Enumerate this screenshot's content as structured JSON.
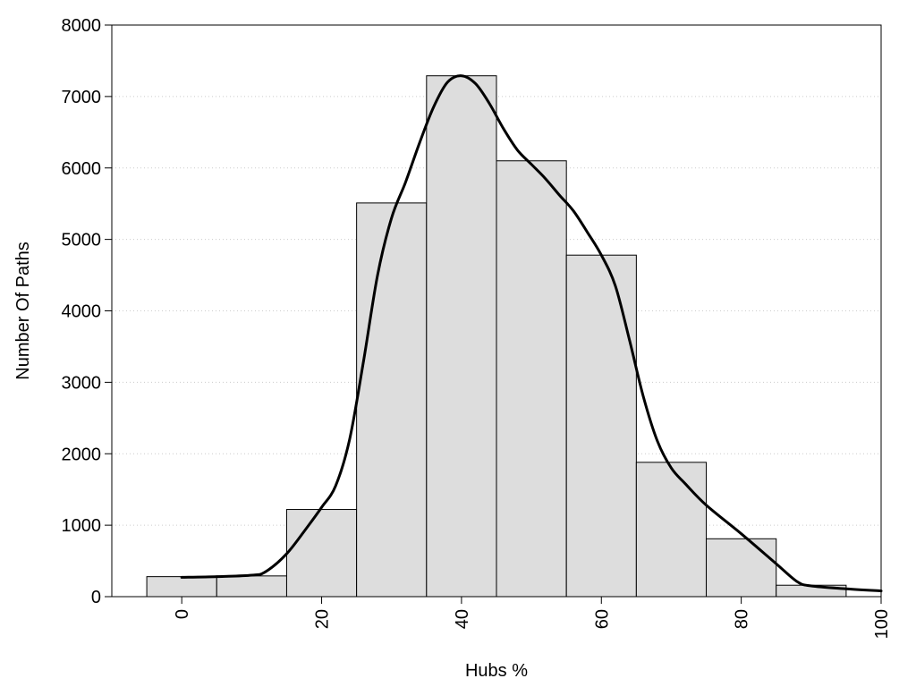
{
  "chart_data": {
    "type": "bar",
    "title": "",
    "xlabel": "Hubs %",
    "ylabel": "Number Of Paths",
    "xlim": [
      -10,
      100
    ],
    "ylim": [
      0,
      8000
    ],
    "x_ticks": [
      "0",
      "20",
      "40",
      "60",
      "80",
      "100"
    ],
    "y_ticks": [
      "0",
      "1000",
      "2000",
      "3000",
      "4000",
      "5000",
      "6000",
      "7000",
      "8000"
    ],
    "grid": "horizontal dotted",
    "bin_width": 10,
    "x": [
      0,
      10,
      20,
      30,
      40,
      50,
      60,
      70,
      80,
      90
    ],
    "values": [
      280,
      290,
      1220,
      5510,
      7290,
      6100,
      4780,
      1880,
      810,
      160
    ],
    "density_curve": {
      "x": [
        0,
        5,
        10,
        12,
        15,
        18,
        20,
        22,
        24,
        26,
        28,
        30,
        32,
        34,
        36,
        38,
        40,
        42,
        44,
        46,
        48,
        50,
        52,
        54,
        56,
        58,
        60,
        62,
        64,
        66,
        68,
        70,
        72,
        75,
        80,
        85,
        88,
        90,
        95,
        100
      ],
      "y": [
        270,
        280,
        300,
        350,
        600,
        980,
        1250,
        1550,
        2200,
        3300,
        4500,
        5300,
        5800,
        6350,
        6850,
        7200,
        7290,
        7180,
        6900,
        6550,
        6250,
        6050,
        5850,
        5620,
        5400,
        5100,
        4780,
        4350,
        3600,
        2800,
        2180,
        1800,
        1580,
        1280,
        880,
        460,
        210,
        150,
        110,
        80
      ]
    },
    "colors": {
      "bar_fill": "#dddddd",
      "bar_stroke": "#000000",
      "curve": "#000000",
      "grid": "#cccccc"
    }
  }
}
